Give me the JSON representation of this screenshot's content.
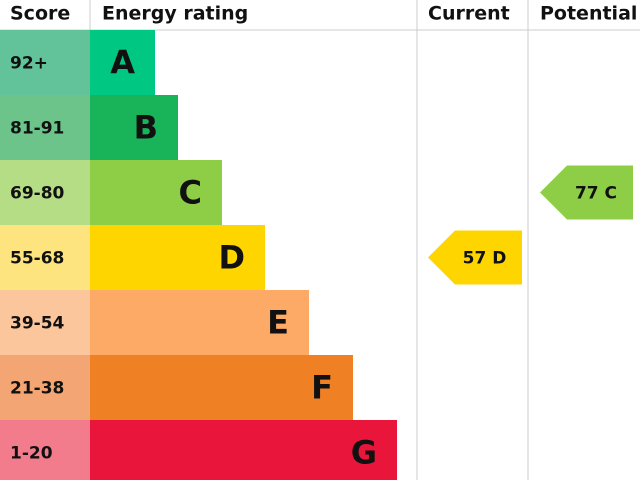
{
  "header": {
    "score": "Score",
    "energy_rating": "Energy rating",
    "current": "Current",
    "potential": "Potential"
  },
  "bands": [
    {
      "score": "92+",
      "letter": "A"
    },
    {
      "score": "81-91",
      "letter": "B"
    },
    {
      "score": "69-80",
      "letter": "C"
    },
    {
      "score": "55-68",
      "letter": "D"
    },
    {
      "score": "39-54",
      "letter": "E"
    },
    {
      "score": "21-38",
      "letter": "F"
    },
    {
      "score": "1-20",
      "letter": "G"
    }
  ],
  "current": {
    "score": 57,
    "rating": "D"
  },
  "potential": {
    "score": 77,
    "rating": "C"
  }
}
